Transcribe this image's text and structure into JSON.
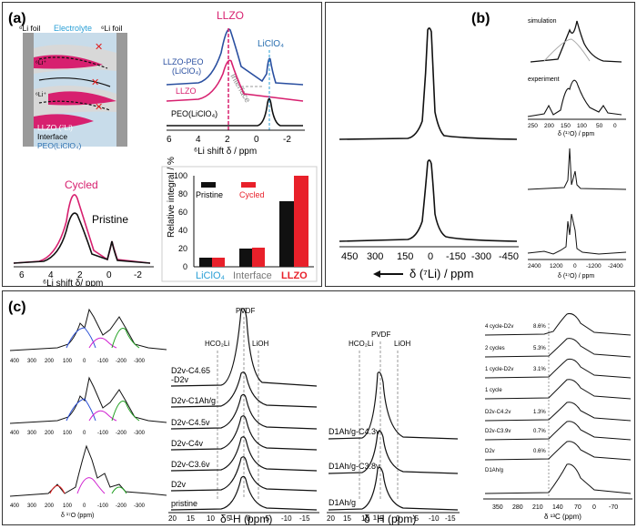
{
  "panel_a": {
    "label": "(a)",
    "schematic": {
      "li_foil_left": "⁶Li foil",
      "electrolyte": "Electrolyte",
      "li_foil_right": "⁶Li foil",
      "li_plus_1": "⁶Li⁺",
      "li_plus_2": "⁶Li⁺",
      "llzo_li": "LLZO (⁷Li)",
      "interface": "Interface",
      "peo": "PEO(LiClO₄)"
    },
    "nmr_top": {
      "title_llzo": "LLZO",
      "label_liclo4": "LiClO₄",
      "label_interface": "Interface",
      "series_labels": [
        "LLZO-PEO",
        "(LiClO₄)",
        "LLZO",
        "PEO(LiClO₄)"
      ],
      "xticks": [
        "6",
        "4",
        "2",
        "0",
        "-2"
      ],
      "xlabel": "⁶Li shift δ / ppm"
    },
    "nmr_bottom": {
      "cycled": "Cycled",
      "pristine": "Pristine",
      "xticks": [
        "6",
        "4",
        "2",
        "0",
        "-2"
      ],
      "xlabel": "⁶Li shift δ/ ppm"
    },
    "bar_chart": {
      "legend": [
        "Pristine",
        "Cycled"
      ],
      "ylabel": "Relative integral / %",
      "yticks": [
        "0",
        "20",
        "40",
        "60",
        "80",
        "100"
      ],
      "categories": [
        "LiClO₄",
        "Interface",
        "LLZO"
      ],
      "category_colors": [
        "#2a9fd6",
        "#777777",
        "#e8202a"
      ]
    }
  },
  "panel_b": {
    "label": "(b)",
    "xticks": [
      "450",
      "300",
      "150",
      "0",
      "-150",
      "-300",
      "-450"
    ],
    "xlabel": "δ (⁷Li) / ppm",
    "inset_top": {
      "simulation": "simulation",
      "experiment": "experiment",
      "xticks": [
        "250",
        "200",
        "150",
        "100",
        "50",
        "0"
      ],
      "xlabel": "δ (¹⁷O) / ppm"
    },
    "inset_bottom": {
      "xticks": [
        "2400",
        "1200",
        "0",
        "-1200",
        "-2400"
      ],
      "xlabel": "δ (¹⁷O) / ppm"
    }
  },
  "panel_c": {
    "label": "(c)",
    "o17": {
      "xticks": [
        "400",
        "300",
        "200",
        "100",
        "0",
        "-100",
        "-200",
        "-300"
      ],
      "xlabel": "δ ¹⁷O (ppm)"
    },
    "h1_left": {
      "markers": [
        "HCO₂Li",
        "PVDF",
        "LiOH"
      ],
      "series": [
        "D2v-C4.65",
        "-D2v",
        "D2v-C1Ah/g",
        "D2v-C4.5v",
        "D2v-C4v",
        "D2v-C3.6v",
        "D2v",
        "pristine"
      ],
      "xticks": [
        "20",
        "15",
        "10",
        "5",
        "0",
        "-5",
        "-10",
        "-15"
      ],
      "xlabel": "δ ¹H (ppm)"
    },
    "h1_right": {
      "markers": [
        "HCO₂Li",
        "PVDF",
        "LiOH"
      ],
      "series": [
        "D1Ah/g-C4.3v",
        "D1Ah/g-C3.8v",
        "D1Ah/g"
      ],
      "xticks": [
        "20",
        "15",
        "10",
        "5",
        "0",
        "-5",
        "-10",
        "-15"
      ],
      "xlabel": "δ ¹H (ppm)"
    },
    "c13": {
      "series": [
        "4 cycle-D2v",
        "2 cycles",
        "1 cycle-D2v",
        "1 cycle",
        "D2v-C4.2v",
        "D2v-C3.9v",
        "D2v",
        "D1Ah/g"
      ],
      "percents": [
        "8.6%",
        "5.3%",
        "3.1%",
        "1.3%",
        "0.7%",
        "0.6%"
      ],
      "xticks": [
        "350",
        "280",
        "210",
        "140",
        "70",
        "0",
        "-70"
      ],
      "xlabel": "δ ¹³C (ppm)"
    }
  }
}
